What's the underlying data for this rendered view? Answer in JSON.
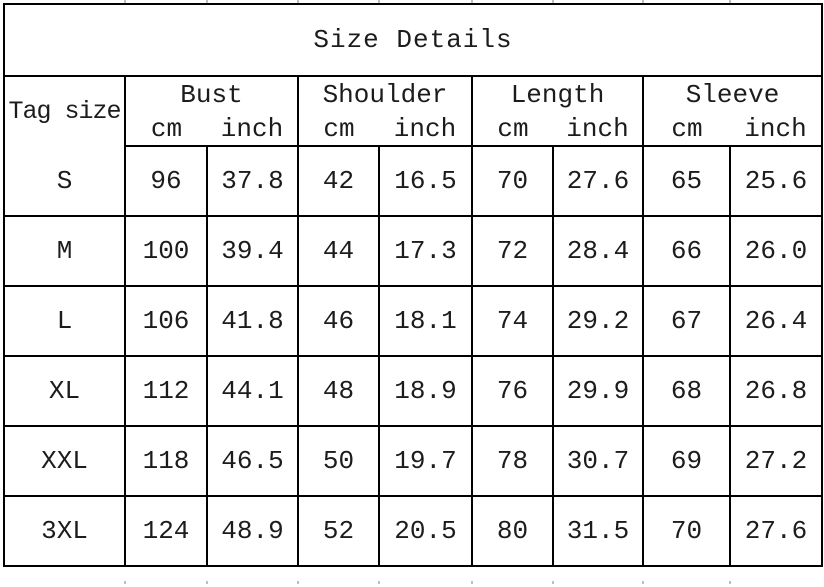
{
  "title": "Size Details",
  "table": {
    "corner_header": "Tag size",
    "groups": [
      {
        "label": "Bust",
        "units": [
          "cm",
          "inch"
        ]
      },
      {
        "label": "Shoulder",
        "units": [
          "cm",
          "inch"
        ]
      },
      {
        "label": "Length",
        "units": [
          "cm",
          "inch"
        ]
      },
      {
        "label": "Sleeve",
        "units": [
          "cm",
          "inch"
        ]
      }
    ],
    "rows": [
      {
        "size": "S",
        "bust": {
          "cm": "96",
          "inch": "37.8"
        },
        "shoulder": {
          "cm": "42",
          "inch": "16.5"
        },
        "length": {
          "cm": "70",
          "inch": "27.6"
        },
        "sleeve": {
          "cm": "65",
          "inch": "25.6"
        }
      },
      {
        "size": "M",
        "bust": {
          "cm": "100",
          "inch": "39.4"
        },
        "shoulder": {
          "cm": "44",
          "inch": "17.3"
        },
        "length": {
          "cm": "72",
          "inch": "28.4"
        },
        "sleeve": {
          "cm": "66",
          "inch": "26.0"
        }
      },
      {
        "size": "L",
        "bust": {
          "cm": "106",
          "inch": "41.8"
        },
        "shoulder": {
          "cm": "46",
          "inch": "18.1"
        },
        "length": {
          "cm": "74",
          "inch": "29.2"
        },
        "sleeve": {
          "cm": "67",
          "inch": "26.4"
        }
      },
      {
        "size": "XL",
        "bust": {
          "cm": "112",
          "inch": "44.1"
        },
        "shoulder": {
          "cm": "48",
          "inch": "18.9"
        },
        "length": {
          "cm": "76",
          "inch": "29.9"
        },
        "sleeve": {
          "cm": "68",
          "inch": "26.8"
        }
      },
      {
        "size": "XXL",
        "bust": {
          "cm": "118",
          "inch": "46.5"
        },
        "shoulder": {
          "cm": "50",
          "inch": "19.7"
        },
        "length": {
          "cm": "78",
          "inch": "30.7"
        },
        "sleeve": {
          "cm": "69",
          "inch": "27.2"
        }
      },
      {
        "size": "3XL",
        "bust": {
          "cm": "124",
          "inch": "48.9"
        },
        "shoulder": {
          "cm": "52",
          "inch": "20.5"
        },
        "length": {
          "cm": "80",
          "inch": "31.5"
        },
        "sleeve": {
          "cm": "70",
          "inch": "27.6"
        }
      }
    ]
  },
  "colors": {
    "grid": "#000000",
    "text": "#1c1c1c",
    "background": "#ffffff"
  }
}
